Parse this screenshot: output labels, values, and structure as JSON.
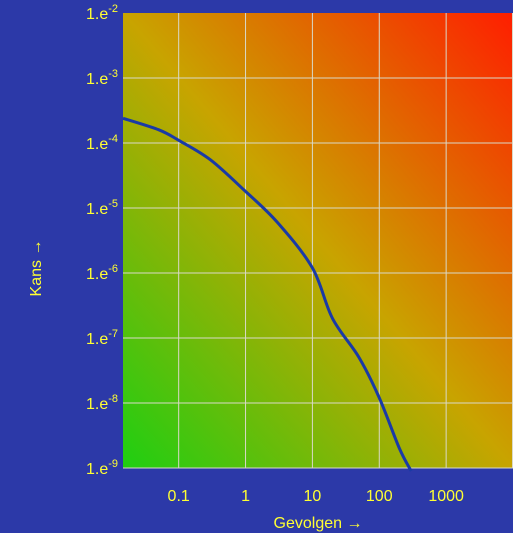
{
  "chart_data": {
    "type": "line",
    "xlabel": "Gevolgen →",
    "ylabel": "Kans →",
    "x_scale": "log",
    "y_scale": "log",
    "xlim": [
      0.0147,
      10000
    ],
    "ylim": [
      1e-09,
      0.01
    ],
    "x_ticks": [
      {
        "value": 0.1,
        "label": "0.1"
      },
      {
        "value": 1,
        "label": "1"
      },
      {
        "value": 10,
        "label": "10"
      },
      {
        "value": 100,
        "label": "100"
      },
      {
        "value": 1000,
        "label": "1000"
      }
    ],
    "y_ticks": [
      {
        "value": 0.01,
        "base": "1.e",
        "exp": "-2"
      },
      {
        "value": 0.001,
        "base": "1.e",
        "exp": "-3"
      },
      {
        "value": 0.0001,
        "base": "1.e",
        "exp": "-4"
      },
      {
        "value": 1e-05,
        "base": "1.e",
        "exp": "-5"
      },
      {
        "value": 1e-06,
        "base": "1.e",
        "exp": "-6"
      },
      {
        "value": 1e-07,
        "base": "1.e",
        "exp": "-7"
      },
      {
        "value": 1e-08,
        "base": "1.e",
        "exp": "-8"
      },
      {
        "value": 1e-09,
        "base": "1.e",
        "exp": "-9"
      }
    ],
    "grid": true,
    "background": "gradient green (bottom-left) to red (top-right)",
    "series": [
      {
        "color": "#1a3aa6",
        "points": [
          [
            0.0147,
            0.00024
          ],
          [
            0.05,
            0.00016
          ],
          [
            0.1,
            0.00011
          ],
          [
            0.3,
            5.5e-05
          ],
          [
            1,
            1.8e-05
          ],
          [
            3,
            6e-06
          ],
          [
            10,
            1.2e-06
          ],
          [
            20,
            2e-07
          ],
          [
            50,
            5e-08
          ],
          [
            100,
            1.2e-08
          ],
          [
            200,
            2e-09
          ],
          [
            300,
            9e-10
          ]
        ]
      }
    ]
  },
  "colors": {
    "page_background": "#2c39a8",
    "text": "#ffff33",
    "grid": "#d9d9c8",
    "curve": "#1a3aa6",
    "gradient_low": "#1ecf12",
    "gradient_mid": "#c8a400",
    "gradient_high": "#ff1e00"
  }
}
